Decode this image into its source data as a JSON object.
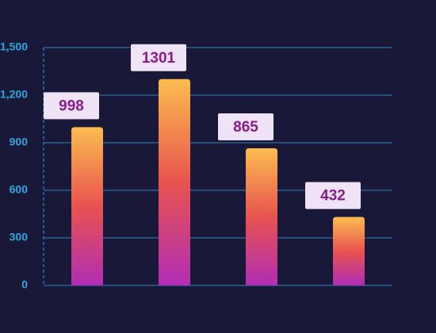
{
  "chart_data": {
    "type": "bar",
    "categories": [
      null,
      null,
      null,
      null
    ],
    "values": [
      998,
      1301,
      865,
      432
    ],
    "gradient": [
      "#fbbd4f",
      "#e8534f",
      "#b02db5"
    ],
    "ylim": [
      0,
      1500
    ],
    "yticks": [
      0,
      300,
      600,
      900,
      {
        "value": 1200,
        "label": "1,200"
      },
      {
        "value": 1500,
        "label": "1,500"
      }
    ],
    "grid": true
  }
}
